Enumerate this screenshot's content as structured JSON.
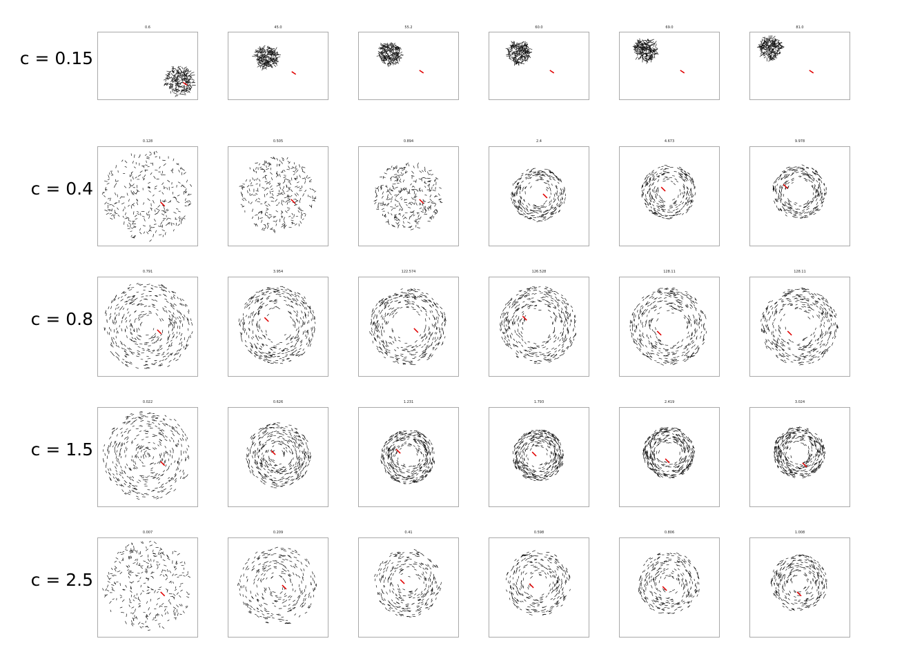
{
  "rows": [
    {
      "label": "c = 0.15",
      "kind": "swarm",
      "panels": [
        {
          "title": "0.6"
        },
        {
          "title": "45.0"
        },
        {
          "title": "55.2"
        },
        {
          "title": "60.0"
        },
        {
          "title": "69.0"
        },
        {
          "title": "81.0"
        }
      ]
    },
    {
      "label": "c = 0.4",
      "kind": "scatter",
      "panels": [
        {
          "title": "0.128"
        },
        {
          "title": "0.505"
        },
        {
          "title": "0.894"
        },
        {
          "title": "2.4"
        },
        {
          "title": "4.673"
        },
        {
          "title": "9.978"
        }
      ]
    },
    {
      "label": "c = 0.8",
      "kind": "ring",
      "panels": [
        {
          "title": "0.791"
        },
        {
          "title": "3.954"
        },
        {
          "title": "122.574"
        },
        {
          "title": "126.528"
        },
        {
          "title": "128.11"
        },
        {
          "title": "128.11"
        }
      ]
    },
    {
      "label": "c = 1.5",
      "kind": "ring",
      "panels": [
        {
          "title": "0.022"
        },
        {
          "title": "0.626"
        },
        {
          "title": "1.231"
        },
        {
          "title": "1.793"
        },
        {
          "title": "2.419"
        },
        {
          "title": "3.024"
        }
      ]
    },
    {
      "label": "c = 2.5",
      "kind": "scatter",
      "panels": [
        {
          "title": "0.007"
        },
        {
          "title": "0.209"
        },
        {
          "title": "0.41"
        },
        {
          "title": "0.598"
        },
        {
          "title": "0.806"
        },
        {
          "title": "1.008"
        }
      ]
    }
  ],
  "colors": {
    "agent": "#111111",
    "predator": "#e00000",
    "frame": "#a8a8a8"
  }
}
